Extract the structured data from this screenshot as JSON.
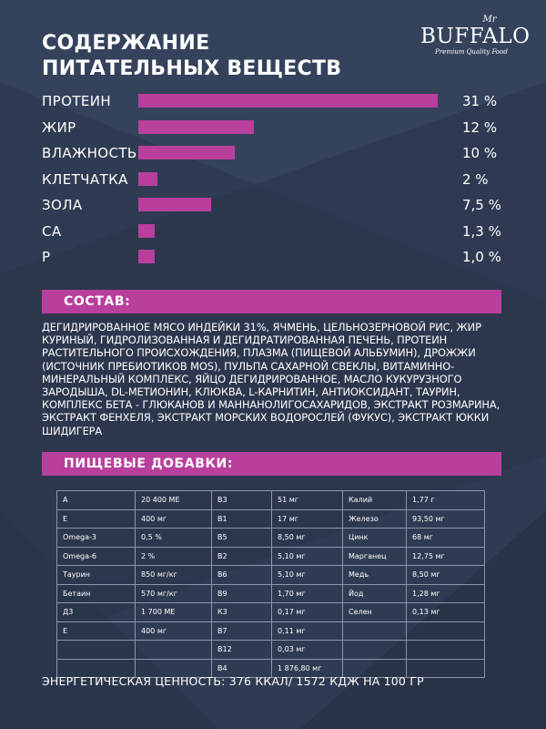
{
  "title": {
    "line1": "СОДЕРЖАНИЕ",
    "line2": "ПИТАТЕЛЬНЫХ ВЕЩЕСТВ"
  },
  "logo": {
    "mr": "Mr",
    "brand": "BUFFALO",
    "tagline": "Premium Quality Food"
  },
  "colors": {
    "accent": "#b83f9c",
    "background": "#2f3b52"
  },
  "nutrients": [
    {
      "label": "ПРОТЕИН",
      "value": "31 %",
      "percent": 31
    },
    {
      "label": "ЖИР",
      "value": "12 %",
      "percent": 12
    },
    {
      "label": "ВЛАЖНОСТЬ",
      "value": "10 %",
      "percent": 10
    },
    {
      "label": "КЛЕТЧАТКА",
      "value": "2 %",
      "percent": 2
    },
    {
      "label": "ЗОЛА",
      "value": "7,5 %",
      "percent": 7.5
    },
    {
      "label": "СА",
      "value": "1,3 %",
      "percent": 1.3
    },
    {
      "label": "Р",
      "value": "1,0 %",
      "percent": 1.0
    }
  ],
  "composition": {
    "heading": "СОСТАВ:",
    "text": "ДЕГИДРИРОВАННОЕ МЯСО ИНДЕЙКИ 31%, ЯЧМЕНЬ, ЦЕЛЬНОЗЕРНОВОЙ РИС, ЖИР КУРИНЫЙ, ГИДРОЛИЗОВАННАЯ И ДЕГИДРАТИРОВАННАЯ ПЕЧЕНЬ, ПРОТЕИН РАСТИТЕЛЬНОГО ПРОИСХОЖДЕНИЯ, ПЛАЗМА (ПИЩЕВОЙ АЛЬБУМИН), ДРОЖЖИ (ИСТОЧНИК ПРЕБИОТИКОВ MOS), ПУЛЬПА САХАРНОЙ СВЕКЛЫ, ВИТАМИННО-МИНЕРАЛЬНЫЙ КОМПЛЕКС, ЯЙЦО ДЕГИДРИРОВАННОЕ, МАСЛО КУКУРУЗНОГО ЗАРОДЫША, DL-МЕТИОНИН, КЛЮКВА, L-КАРНИТИН, АНТИОКСИДАНТ, ТАУРИН, КОМПЛЕКС БЕТА - ГЛЮКАНОВ И МАННАНОЛИГОСАХАРИДОВ, ЭКСТРАКТ РОЗМАРИНА, ЭКСТРАКТ ФЕНХЕЛЯ, ЭКСТРАКТ МОРСКИХ ВОДОРОСЛЕЙ (ФУКУС), ЭКСТРАКТ ЮККИ ШИДИГЕРА"
  },
  "additives": {
    "heading": "ПИЩЕВЫЕ ДОБАВКИ:",
    "rows": [
      [
        [
          "A",
          "20 400 МЕ"
        ],
        [
          "B3",
          "51 мг"
        ],
        [
          "Калий",
          "1,77 г"
        ]
      ],
      [
        [
          "E",
          "400 мг"
        ],
        [
          "B1",
          "17 мг"
        ],
        [
          "Железо",
          "93,50 мг"
        ]
      ],
      [
        [
          "Omega-3",
          "0,5 %"
        ],
        [
          "B5",
          "8,50 мг"
        ],
        [
          "Цинк",
          "68 мг"
        ]
      ],
      [
        [
          "Omega-6",
          "2 %"
        ],
        [
          "B2",
          "5,10 мг"
        ],
        [
          "Марганец",
          "12,75 мг"
        ]
      ],
      [
        [
          "Таурин",
          "850 мг/кг"
        ],
        [
          "B6",
          "5,10 мг"
        ],
        [
          "Медь",
          "8,50 мг"
        ]
      ],
      [
        [
          "Бетаин",
          "570 мг/кг"
        ],
        [
          "B9",
          "1,70 мг"
        ],
        [
          "Йод",
          "1,28 мг"
        ]
      ],
      [
        [
          "Д3",
          "1 700 МЕ"
        ],
        [
          "К3",
          "0,17 мг"
        ],
        [
          "Селен",
          "0,13 мг"
        ]
      ],
      [
        [
          "E",
          "400 мг"
        ],
        [
          "B7",
          "0,11 мг"
        ],
        [
          "",
          ""
        ]
      ],
      [
        [
          "",
          ""
        ],
        [
          "B12",
          "0,03 мг"
        ],
        [
          "",
          ""
        ]
      ],
      [
        [
          "",
          ""
        ],
        [
          "B4",
          "1 876,80 мг"
        ],
        [
          "",
          ""
        ]
      ]
    ]
  },
  "energy": "ЭНЕРГЕТИЧЕСКАЯ ЦЕННОСТЬ: 376 ККАЛ/ 1572 КДЖ НА 100 ГР"
}
